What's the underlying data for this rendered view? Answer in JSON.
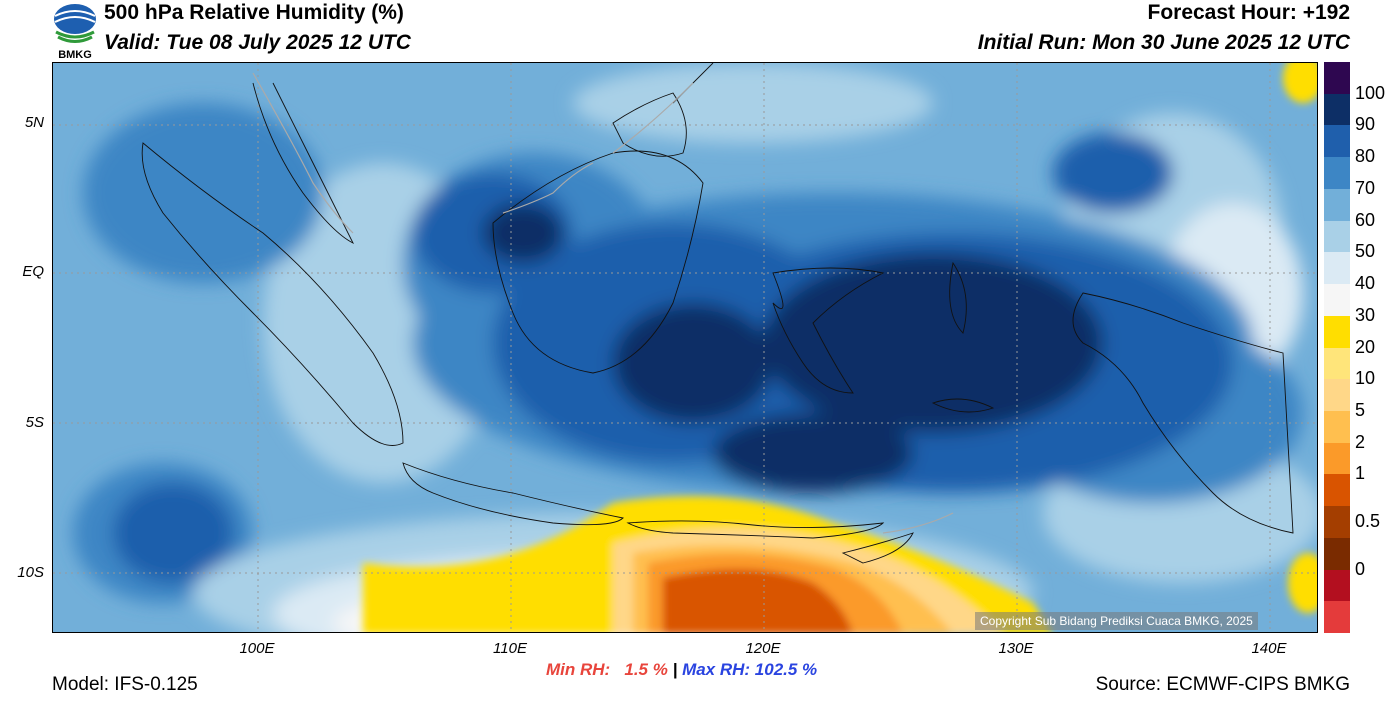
{
  "header": {
    "title": "500 hPa Relative Humidity (%)",
    "valid": "Valid: Tue 08 July 2025 12 UTC",
    "forecast_hour": "Forecast Hour: +192",
    "initial_run": "Initial Run: Mon 30 June 2025 12 UTC",
    "logo_text": "BMKG"
  },
  "axes": {
    "lat_labels": [
      "5N",
      "EQ",
      "5S",
      "10S"
    ],
    "lon_labels": [
      "100E",
      "110E",
      "120E",
      "130E",
      "140E"
    ]
  },
  "colorbar": {
    "labels": [
      "100",
      "90",
      "80",
      "70",
      "60",
      "50",
      "40",
      "30",
      "20",
      "10",
      "5",
      "2",
      "1",
      "0.5",
      "0"
    ],
    "colors": [
      "#2e0750",
      "#0d2f66",
      "#1f5fac",
      "#3d86c5",
      "#72afd9",
      "#a9d0e7",
      "#dbeaf4",
      "#f6f6f6",
      "#ffde00",
      "#ffe57a",
      "#ffd788",
      "#ffbf4f",
      "#fb9a29",
      "#d95400",
      "#a43e00",
      "#7a2b00",
      "#b30f1f",
      "#e43b3b"
    ]
  },
  "stats": {
    "min": "Min RH:   1.5 %",
    "sep": " | ",
    "max": "Max RH: 102.5 %"
  },
  "footer": {
    "model": "Model: IFS-0.125",
    "source": "Source: ECMWF-CIPS BMKG",
    "copyright": "Copyright Sub Bidang Prediksi Cuaca BMKG, 2025"
  }
}
